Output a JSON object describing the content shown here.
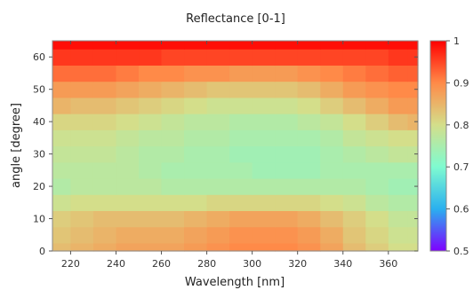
{
  "chart_data": {
    "type": "heatmap",
    "title": "Reflectance [0-1]",
    "xlabel": "Wavelength [nm]",
    "ylabel": "angle [degree]",
    "xlim": [
      212,
      373
    ],
    "ylim": [
      0,
      65
    ],
    "x_ticks": [
      220,
      240,
      260,
      280,
      300,
      320,
      340,
      360
    ],
    "y_ticks": [
      0,
      10,
      20,
      30,
      40,
      50,
      60
    ],
    "colorbar": {
      "range": [
        0.5,
        1.0
      ],
      "ticks": [
        0.5,
        0.6,
        0.7,
        0.8,
        0.9,
        1
      ],
      "colormap": "rainbow",
      "stops": [
        "#7f00ff",
        "#2ab0ef",
        "#7ffbd0",
        "#d4de8a",
        "#ff8a48",
        "#ff0000"
      ]
    },
    "grid": false,
    "x": [
      215,
      225,
      235,
      245,
      255,
      265,
      275,
      285,
      295,
      305,
      315,
      325,
      335,
      345,
      355,
      365,
      372
    ],
    "y": [
      0,
      5,
      10,
      15,
      20,
      25,
      30,
      35,
      40,
      45,
      50,
      55,
      60,
      65
    ],
    "z": [
      [
        0.84,
        0.85,
        0.86,
        0.87,
        0.87,
        0.87,
        0.88,
        0.89,
        0.9,
        0.9,
        0.9,
        0.89,
        0.87,
        0.84,
        0.82,
        0.8,
        0.8
      ],
      [
        0.83,
        0.84,
        0.85,
        0.86,
        0.86,
        0.86,
        0.87,
        0.88,
        0.89,
        0.89,
        0.89,
        0.88,
        0.86,
        0.83,
        0.81,
        0.79,
        0.79
      ],
      [
        0.82,
        0.83,
        0.84,
        0.84,
        0.84,
        0.84,
        0.85,
        0.86,
        0.87,
        0.87,
        0.87,
        0.86,
        0.84,
        0.82,
        0.8,
        0.78,
        0.78
      ],
      [
        0.79,
        0.8,
        0.8,
        0.8,
        0.8,
        0.8,
        0.8,
        0.81,
        0.81,
        0.81,
        0.81,
        0.81,
        0.8,
        0.79,
        0.77,
        0.76,
        0.76
      ],
      [
        0.76,
        0.77,
        0.77,
        0.77,
        0.77,
        0.76,
        0.76,
        0.76,
        0.76,
        0.76,
        0.76,
        0.76,
        0.76,
        0.76,
        0.75,
        0.74,
        0.74
      ],
      [
        0.77,
        0.77,
        0.77,
        0.77,
        0.76,
        0.75,
        0.75,
        0.75,
        0.75,
        0.74,
        0.74,
        0.74,
        0.75,
        0.75,
        0.75,
        0.75,
        0.75
      ],
      [
        0.78,
        0.78,
        0.78,
        0.77,
        0.76,
        0.76,
        0.75,
        0.75,
        0.74,
        0.74,
        0.74,
        0.74,
        0.75,
        0.76,
        0.77,
        0.78,
        0.78
      ],
      [
        0.79,
        0.79,
        0.79,
        0.78,
        0.77,
        0.77,
        0.76,
        0.76,
        0.75,
        0.75,
        0.75,
        0.75,
        0.76,
        0.78,
        0.79,
        0.8,
        0.8
      ],
      [
        0.81,
        0.81,
        0.81,
        0.8,
        0.79,
        0.78,
        0.77,
        0.77,
        0.76,
        0.76,
        0.76,
        0.77,
        0.78,
        0.8,
        0.82,
        0.84,
        0.85
      ],
      [
        0.85,
        0.84,
        0.84,
        0.83,
        0.82,
        0.81,
        0.8,
        0.79,
        0.79,
        0.79,
        0.79,
        0.8,
        0.82,
        0.84,
        0.86,
        0.88,
        0.88
      ],
      [
        0.88,
        0.88,
        0.88,
        0.87,
        0.86,
        0.85,
        0.84,
        0.83,
        0.83,
        0.83,
        0.83,
        0.84,
        0.86,
        0.88,
        0.89,
        0.9,
        0.9
      ],
      [
        0.92,
        0.92,
        0.92,
        0.91,
        0.9,
        0.9,
        0.89,
        0.89,
        0.88,
        0.88,
        0.88,
        0.89,
        0.9,
        0.91,
        0.92,
        0.93,
        0.93
      ],
      [
        0.96,
        0.96,
        0.96,
        0.96,
        0.96,
        0.95,
        0.95,
        0.95,
        0.95,
        0.95,
        0.95,
        0.95,
        0.95,
        0.95,
        0.95,
        0.96,
        0.96
      ],
      [
        0.99,
        0.99,
        0.99,
        0.99,
        0.99,
        0.99,
        0.99,
        0.99,
        0.99,
        0.99,
        0.99,
        0.99,
        0.99,
        0.99,
        0.99,
        0.99,
        0.99
      ]
    ]
  }
}
